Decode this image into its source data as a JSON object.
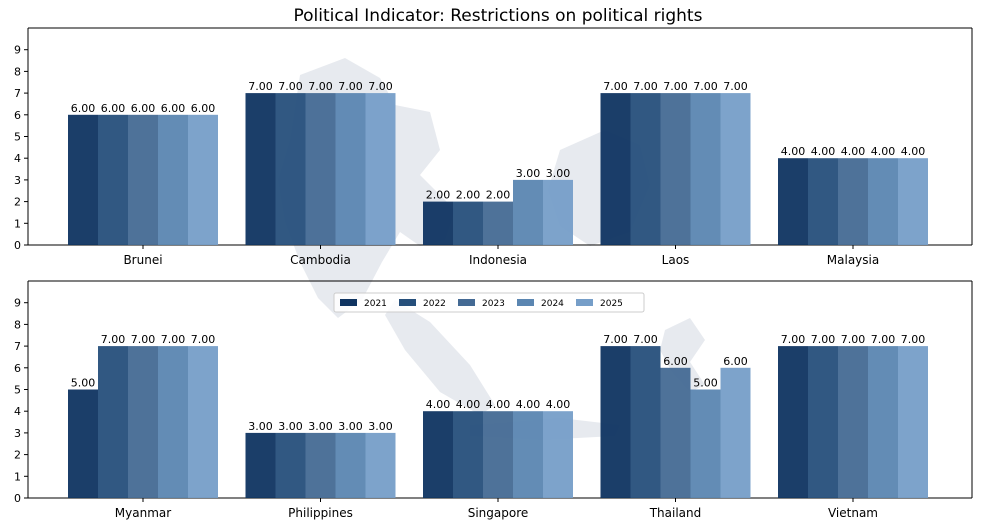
{
  "chart_data": {
    "type": "bar",
    "title": "Political Indicator: Restrictions on political rights",
    "xlabel": "",
    "ylabel": "",
    "ylim": [
      0,
      10
    ],
    "yticks": [
      0,
      1,
      2,
      3,
      4,
      5,
      6,
      7,
      8,
      9
    ],
    "grid": false,
    "legend_position": "center",
    "legend": [
      "2021",
      "2022",
      "2023",
      "2024",
      "2025"
    ],
    "series_colors": [
      "#0f3461",
      "#264f7b",
      "#446a94",
      "#5b86b1",
      "#769ec8"
    ],
    "background_image": "southeast-asia-map-watermark",
    "panels": [
      {
        "categories": [
          "Brunei",
          "Cambodia",
          "Indonesia",
          "Laos",
          "Malaysia"
        ],
        "values": [
          [
            6,
            6,
            6,
            6,
            6
          ],
          [
            7,
            7,
            7,
            7,
            7
          ],
          [
            2,
            2,
            2,
            3,
            3
          ],
          [
            7,
            7,
            7,
            7,
            7
          ],
          [
            4,
            4,
            4,
            4,
            4
          ]
        ],
        "labels": [
          [
            "6.00",
            "6.00",
            "6.00",
            "6.00",
            "6.00"
          ],
          [
            "7.00",
            "7.00",
            "7.00",
            "7.00",
            "7.00"
          ],
          [
            "2.00",
            "2.00",
            "2.00",
            "3.00",
            "3.00"
          ],
          [
            "7.00",
            "7.00",
            "7.00",
            "7.00",
            "7.00"
          ],
          [
            "4.00",
            "4.00",
            "4.00",
            "4.00",
            "4.00"
          ]
        ]
      },
      {
        "categories": [
          "Myanmar",
          "Philippines",
          "Singapore",
          "Thailand",
          "Vietnam"
        ],
        "values": [
          [
            5,
            7,
            7,
            7,
            7
          ],
          [
            3,
            3,
            3,
            3,
            3
          ],
          [
            4,
            4,
            4,
            4,
            4
          ],
          [
            7,
            7,
            6,
            5,
            6
          ],
          [
            7,
            7,
            7,
            7,
            7
          ]
        ],
        "labels": [
          [
            "5.00",
            "7.00",
            "7.00",
            "7.00",
            "7.00"
          ],
          [
            "3.00",
            "3.00",
            "3.00",
            "3.00",
            "3.00"
          ],
          [
            "4.00",
            "4.00",
            "4.00",
            "4.00",
            "4.00"
          ],
          [
            "7.00",
            "7.00",
            "6.00",
            "5.00",
            "6.00"
          ],
          [
            "7.00",
            "7.00",
            "7.00",
            "7.00",
            "7.00"
          ]
        ]
      }
    ]
  }
}
